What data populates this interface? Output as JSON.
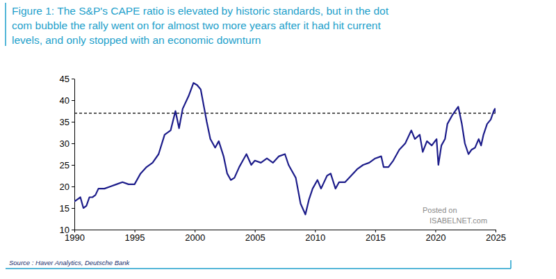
{
  "chart_data": {
    "type": "line",
    "title": [
      "Figure 1: The S&P's CAPE ratio is elevated by historic standards, but in the dot",
      "com bubble the rally went on for almost two more years after it had hit current",
      "levels, and only stopped with an economic downturn"
    ],
    "source": "Source : Haver Analytics, Deutsche Bank",
    "watermark": [
      "Posted on",
      "ISABELNET.com"
    ],
    "color": "#1c1c8a",
    "line_style": "solid",
    "xlim": [
      1990,
      2025
    ],
    "xticks": [
      1990,
      1995,
      2000,
      2005,
      2010,
      2015,
      2020,
      2025
    ],
    "ylim": [
      10,
      45
    ],
    "yticks": [
      10,
      15,
      20,
      25,
      30,
      35,
      40,
      45
    ],
    "grid": false,
    "reference_line": {
      "value": 37,
      "line_style": "dashed"
    },
    "x": [
      1990,
      1990.25,
      1990.5,
      1990.75,
      1991,
      1991.25,
      1991.5,
      1991.75,
      1992,
      1992.5,
      1993,
      1993.5,
      1994,
      1994.5,
      1995,
      1995.5,
      1996,
      1996.5,
      1997,
      1997.5,
      1998,
      1998.4,
      1998.7,
      1999,
      1999.5,
      1999.9,
      2000.2,
      2000.5,
      2000.8,
      2001,
      2001.3,
      2001.7,
      2002,
      2002.4,
      2002.7,
      2003,
      2003.3,
      2003.7,
      2004,
      2004.3,
      2004.7,
      2005,
      2005.5,
      2006,
      2006.5,
      2007,
      2007.5,
      2007.8,
      2008,
      2008.4,
      2008.8,
      2009.2,
      2009.5,
      2009.8,
      2010.2,
      2010.5,
      2011,
      2011.3,
      2011.7,
      2012,
      2012.5,
      2013,
      2013.5,
      2014,
      2014.5,
      2015,
      2015.5,
      2015.7,
      2016.1,
      2016.5,
      2017,
      2017.5,
      2018,
      2018.3,
      2018.7,
      2018.95,
      2019.3,
      2019.7,
      2020.1,
      2020.25,
      2020.5,
      2020.8,
      2021,
      2021.4,
      2021.9,
      2022.2,
      2022.45,
      2022.75,
      2023,
      2023.3,
      2023.6,
      2023.8,
      2024,
      2024.3,
      2024.6,
      2024.85,
      2024.95,
      2025
    ],
    "values": [
      16.5,
      17,
      17.5,
      15,
      15.5,
      17.5,
      17.5,
      18,
      19.5,
      19.5,
      20,
      20.5,
      21,
      20.5,
      20.5,
      23,
      24.5,
      25.5,
      27.5,
      32,
      33,
      37.5,
      33.5,
      38,
      41,
      44,
      43.5,
      42.5,
      38,
      35,
      31,
      29,
      30.5,
      27,
      23,
      21.5,
      22,
      24.5,
      26,
      27.5,
      25,
      26,
      25.5,
      26.5,
      25.5,
      27,
      27.5,
      25,
      24,
      22,
      16,
      13.5,
      17,
      19.5,
      21.5,
      19.5,
      22.5,
      23,
      19.5,
      21,
      21,
      22.5,
      24,
      25,
      25.5,
      26.5,
      27,
      24.5,
      24.5,
      26,
      28.5,
      30,
      33,
      31,
      32,
      28,
      30.5,
      29.5,
      31,
      25,
      29.5,
      31,
      34.5,
      36.5,
      38.5,
      34.5,
      30,
      27.5,
      28.5,
      29,
      31,
      29.5,
      32,
      34.5,
      35.5,
      37.5,
      38,
      37
    ]
  }
}
